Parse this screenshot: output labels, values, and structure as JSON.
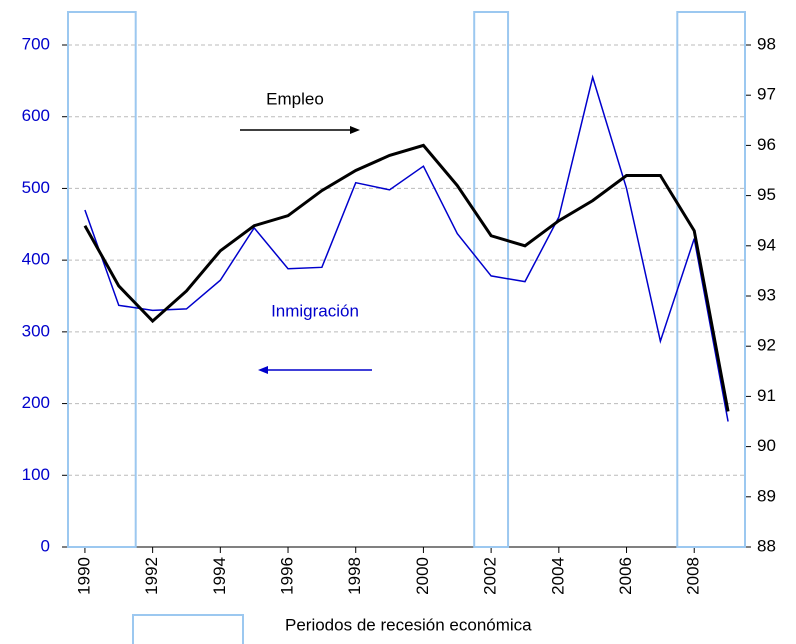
{
  "chart_data": {
    "type": "line",
    "x": [
      1990,
      1991,
      1992,
      1993,
      1994,
      1995,
      1996,
      1997,
      1998,
      1999,
      2000,
      2001,
      2002,
      2003,
      2004,
      2005,
      2006,
      2007,
      2008,
      2009
    ],
    "xlim": [
      1989.5,
      2009.5
    ],
    "xticks": [
      1990,
      1992,
      1994,
      1996,
      1998,
      2000,
      2002,
      2004,
      2006,
      2008
    ],
    "series": [
      {
        "name": "Inmigración",
        "color": "#0000cc",
        "values": [
          470,
          337,
          330,
          332,
          372,
          445,
          388,
          390,
          508,
          498,
          531,
          437,
          378,
          370,
          460,
          655,
          500,
          287,
          430,
          175
        ]
      },
      {
        "name": "Empleo",
        "color": "#000000",
        "axis": "y2",
        "values": [
          94.4,
          93.2,
          92.5,
          93.1,
          93.9,
          94.4,
          94.6,
          95.1,
          95.5,
          95.8,
          96.0,
          95.2,
          94.2,
          94.0,
          94.5,
          94.9,
          95.4,
          95.4,
          94.3,
          90.7
        ]
      }
    ],
    "ylim": [
      0,
      700
    ],
    "yticks": [
      0,
      100,
      200,
      300,
      400,
      500,
      600,
      700
    ],
    "y2lim": [
      88,
      98
    ],
    "y2ticks": [
      88,
      89,
      90,
      91,
      92,
      93,
      94,
      95,
      96,
      97,
      98
    ],
    "grid": true,
    "recession_periods": [
      [
        1990,
        1991
      ],
      [
        2002,
        2002
      ],
      [
        2008,
        2009
      ]
    ],
    "recession_color": "#9cc8f0",
    "legend_label": "Periodos de recesión económica"
  }
}
